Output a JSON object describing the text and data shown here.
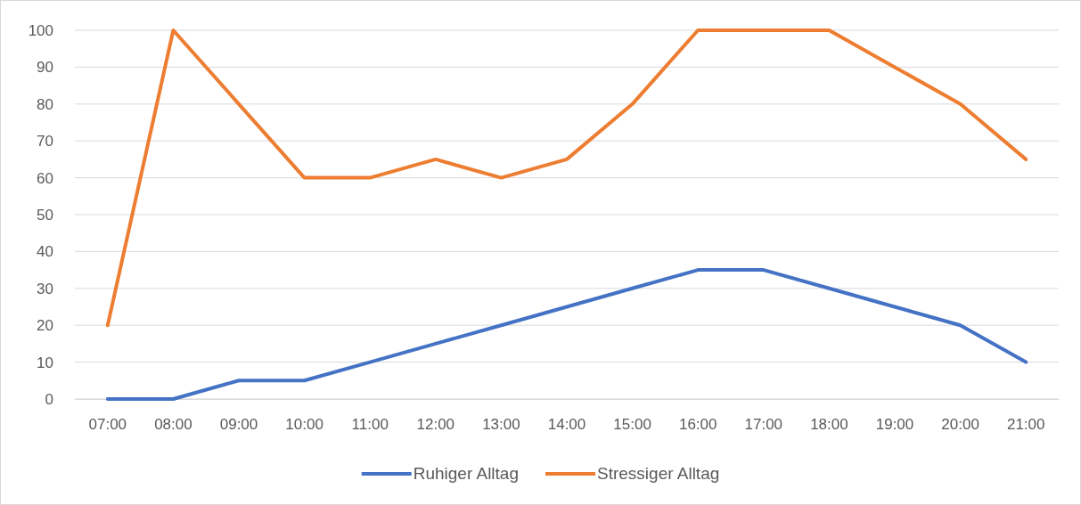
{
  "chart_data": {
    "type": "line",
    "categories": [
      "07:00",
      "08:00",
      "09:00",
      "10:00",
      "11:00",
      "12:00",
      "13:00",
      "14:00",
      "15:00",
      "16:00",
      "17:00",
      "18:00",
      "19:00",
      "20:00",
      "21:00"
    ],
    "series": [
      {
        "name": "Ruhiger Alltag",
        "color": "#4472c4",
        "values": [
          0,
          0,
          5,
          5,
          10,
          15,
          20,
          25,
          30,
          35,
          35,
          30,
          25,
          20,
          10
        ]
      },
      {
        "name": "Stressiger Alltag",
        "color": "#ed7d31",
        "values": [
          20,
          100,
          80,
          60,
          60,
          65,
          60,
          65,
          80,
          100,
          100,
          100,
          90,
          80,
          65
        ]
      }
    ],
    "ylim": [
      0,
      100
    ],
    "yticks": [
      0,
      10,
      20,
      30,
      40,
      50,
      60,
      70,
      80,
      90,
      100
    ],
    "grid": "y",
    "legend": "bottom",
    "marker": "none",
    "line_style": "solid"
  }
}
